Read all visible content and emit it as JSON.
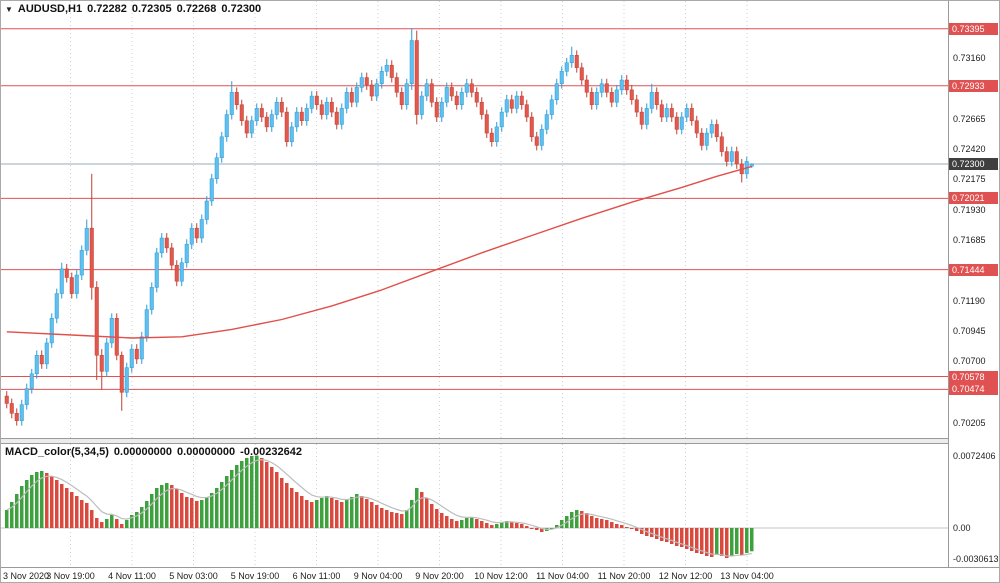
{
  "window": {
    "collapse_icon": "▼",
    "title_symbol": "AUDUSD,H1",
    "ohlc": {
      "open": "0.72282",
      "high": "0.72305",
      "low": "0.72268",
      "close": "0.72300"
    }
  },
  "colors": {
    "up_candle_fill": "#5fc0ef",
    "up_candle_border": "#2d9cd6",
    "down_candle_fill": "#e2584c",
    "down_candle_border": "#bf4136",
    "level_line": "#e05252",
    "ma_line": "#e04f4a",
    "current_line": "#93adc0",
    "tag_red_bg": "#e05252",
    "tag_current_bg": "#3f3f3f",
    "macd_up": "#3da13d",
    "macd_down": "#d9493e",
    "signal_line": "#bdbdbd",
    "grid": "#cfcfcf",
    "zero_line": "#c4c4c4"
  },
  "chart_data": {
    "type": "candlestick",
    "symbol": "AUDUSD",
    "timeframe": "H1",
    "price_axis": {
      "range": {
        "min": 0.7008,
        "max": 0.7362
      },
      "ticks": [
        {
          "v": 0.7316,
          "t": "0.73160"
        },
        {
          "v": 0.72665,
          "t": "0.72665"
        },
        {
          "v": 0.7242,
          "t": "0.72420"
        },
        {
          "v": 0.72175,
          "t": "0.72175"
        },
        {
          "v": 0.7193,
          "t": "0.71930"
        },
        {
          "v": 0.71685,
          "t": "0.71685"
        },
        {
          "v": 0.7119,
          "t": "0.71190"
        },
        {
          "v": 0.70945,
          "t": "0.70945"
        },
        {
          "v": 0.707,
          "t": "0.70700"
        },
        {
          "v": 0.70205,
          "t": "0.70205"
        }
      ]
    },
    "time_labels": [
      "3 Nov 2020",
      "3 Nov 19:00",
      "4 Nov 11:00",
      "5 Nov 03:00",
      "5 Nov 19:00",
      "6 Nov 11:00",
      "9 Nov 04:00",
      "9 Nov 20:00",
      "10 Nov 12:00",
      "11 Nov 04:00",
      "11 Nov 20:00",
      "12 Nov 12:00",
      "13 Nov 04:00"
    ],
    "horizontal_levels": [
      {
        "v": 0.73395,
        "t": "0.73395"
      },
      {
        "v": 0.72933,
        "t": "0.72933"
      },
      {
        "v": 0.72021,
        "t": "0.72021"
      },
      {
        "v": 0.71444,
        "t": "0.71444"
      },
      {
        "v": 0.70578,
        "t": "0.70578"
      },
      {
        "v": 0.70474,
        "t": "0.70474"
      }
    ],
    "current_price": {
      "v": 0.723,
      "t": "0.72300"
    },
    "ma_line_anchors": [
      [
        0,
        0.7094
      ],
      [
        15,
        0.7091
      ],
      [
        25,
        0.7089
      ],
      [
        35,
        0.709
      ],
      [
        45,
        0.7096
      ],
      [
        55,
        0.7104
      ],
      [
        65,
        0.7115
      ],
      [
        75,
        0.7128
      ],
      [
        85,
        0.7143
      ],
      [
        95,
        0.7158
      ],
      [
        105,
        0.7172
      ],
      [
        115,
        0.7186
      ],
      [
        125,
        0.7199
      ],
      [
        135,
        0.7211
      ],
      [
        142,
        0.722
      ],
      [
        149,
        0.7228
      ]
    ],
    "candles": [
      [
        0.7042,
        0.7046,
        0.7032,
        0.7036
      ],
      [
        0.7036,
        0.704,
        0.7024,
        0.7028
      ],
      [
        0.7028,
        0.7032,
        0.7018,
        0.7022
      ],
      [
        0.7022,
        0.7039,
        0.7018,
        0.7035
      ],
      [
        0.7035,
        0.7052,
        0.7031,
        0.7048
      ],
      [
        0.7048,
        0.7064,
        0.7044,
        0.706
      ],
      [
        0.706,
        0.7079,
        0.7056,
        0.7075
      ],
      [
        0.7075,
        0.7079,
        0.7064,
        0.7068
      ],
      [
        0.7068,
        0.7089,
        0.7064,
        0.7085
      ],
      [
        0.7085,
        0.7109,
        0.7081,
        0.7105
      ],
      [
        0.7105,
        0.7129,
        0.7101,
        0.7125
      ],
      [
        0.7125,
        0.715,
        0.7121,
        0.7145
      ],
      [
        0.7145,
        0.7149,
        0.7134,
        0.7138
      ],
      [
        0.7138,
        0.7142,
        0.7121,
        0.7125
      ],
      [
        0.7125,
        0.7144,
        0.7121,
        0.714
      ],
      [
        0.714,
        0.7164,
        0.7136,
        0.716
      ],
      [
        0.716,
        0.7185,
        0.7156,
        0.7178
      ],
      [
        0.7178,
        0.7222,
        0.712,
        0.713
      ],
      [
        0.713,
        0.7135,
        0.7055,
        0.7075
      ],
      [
        0.7075,
        0.708,
        0.7047,
        0.7062
      ],
      [
        0.7062,
        0.7089,
        0.7058,
        0.7085
      ],
      [
        0.7085,
        0.7109,
        0.7081,
        0.7105
      ],
      [
        0.7105,
        0.7109,
        0.7071,
        0.7075
      ],
      [
        0.7075,
        0.7078,
        0.703,
        0.7045
      ],
      [
        0.7045,
        0.7069,
        0.7041,
        0.7065
      ],
      [
        0.7065,
        0.7084,
        0.7061,
        0.708
      ],
      [
        0.708,
        0.7084,
        0.7068,
        0.7072
      ],
      [
        0.7072,
        0.7094,
        0.7068,
        0.709
      ],
      [
        0.709,
        0.7116,
        0.7086,
        0.7112
      ],
      [
        0.7112,
        0.7134,
        0.7108,
        0.713
      ],
      [
        0.713,
        0.7162,
        0.7126,
        0.7158
      ],
      [
        0.7158,
        0.7174,
        0.7154,
        0.717
      ],
      [
        0.717,
        0.7174,
        0.7158,
        0.7162
      ],
      [
        0.7162,
        0.7166,
        0.7144,
        0.7148
      ],
      [
        0.7148,
        0.7152,
        0.7131,
        0.7135
      ],
      [
        0.7135,
        0.7154,
        0.7131,
        0.715
      ],
      [
        0.715,
        0.7169,
        0.7146,
        0.7165
      ],
      [
        0.7165,
        0.7182,
        0.7161,
        0.7178
      ],
      [
        0.7178,
        0.7182,
        0.7166,
        0.717
      ],
      [
        0.717,
        0.7189,
        0.7166,
        0.7185
      ],
      [
        0.7185,
        0.7204,
        0.7181,
        0.72
      ],
      [
        0.72,
        0.7222,
        0.7196,
        0.7218
      ],
      [
        0.7218,
        0.7239,
        0.7214,
        0.7235
      ],
      [
        0.7235,
        0.7256,
        0.7231,
        0.7252
      ],
      [
        0.7252,
        0.7274,
        0.7248,
        0.727
      ],
      [
        0.727,
        0.7297,
        0.7266,
        0.7288
      ],
      [
        0.7288,
        0.7292,
        0.7274,
        0.7278
      ],
      [
        0.7278,
        0.7282,
        0.7261,
        0.7265
      ],
      [
        0.7265,
        0.7269,
        0.7251,
        0.7255
      ],
      [
        0.7255,
        0.7269,
        0.7251,
        0.7265
      ],
      [
        0.7265,
        0.7279,
        0.7261,
        0.7275
      ],
      [
        0.7275,
        0.7279,
        0.7264,
        0.7268
      ],
      [
        0.7268,
        0.7272,
        0.7256,
        0.726
      ],
      [
        0.726,
        0.7274,
        0.7256,
        0.727
      ],
      [
        0.727,
        0.7284,
        0.7266,
        0.728
      ],
      [
        0.728,
        0.7284,
        0.7268,
        0.7272
      ],
      [
        0.7272,
        0.7276,
        0.7244,
        0.7248
      ],
      [
        0.7248,
        0.7264,
        0.7244,
        0.726
      ],
      [
        0.726,
        0.7276,
        0.7256,
        0.7272
      ],
      [
        0.7272,
        0.7276,
        0.7261,
        0.7265
      ],
      [
        0.7265,
        0.7279,
        0.7261,
        0.7275
      ],
      [
        0.7275,
        0.7289,
        0.7271,
        0.7285
      ],
      [
        0.7285,
        0.7289,
        0.7274,
        0.7278
      ],
      [
        0.7278,
        0.7282,
        0.7266,
        0.727
      ],
      [
        0.727,
        0.7284,
        0.7266,
        0.728
      ],
      [
        0.728,
        0.7284,
        0.7268,
        0.7272
      ],
      [
        0.7272,
        0.7276,
        0.7258,
        0.7262
      ],
      [
        0.7262,
        0.7279,
        0.7258,
        0.7275
      ],
      [
        0.7275,
        0.7292,
        0.7271,
        0.7288
      ],
      [
        0.7288,
        0.7292,
        0.7276,
        0.728
      ],
      [
        0.728,
        0.7296,
        0.7276,
        0.7292
      ],
      [
        0.7292,
        0.7304,
        0.7288,
        0.73
      ],
      [
        0.73,
        0.7304,
        0.729,
        0.7294
      ],
      [
        0.7294,
        0.7298,
        0.7281,
        0.7285
      ],
      [
        0.7285,
        0.7299,
        0.7281,
        0.7295
      ],
      [
        0.7295,
        0.7309,
        0.7291,
        0.7305
      ],
      [
        0.7305,
        0.7315,
        0.7301,
        0.731
      ],
      [
        0.731,
        0.7314,
        0.7296,
        0.73
      ],
      [
        0.73,
        0.7304,
        0.7284,
        0.7288
      ],
      [
        0.7288,
        0.7292,
        0.7274,
        0.7278
      ],
      [
        0.7278,
        0.7299,
        0.7274,
        0.7295
      ],
      [
        0.7295,
        0.734,
        0.729,
        0.733
      ],
      [
        0.733,
        0.7338,
        0.7262,
        0.727
      ],
      [
        0.727,
        0.7289,
        0.7266,
        0.7285
      ],
      [
        0.7285,
        0.7299,
        0.7281,
        0.7295
      ],
      [
        0.7295,
        0.7299,
        0.7276,
        0.728
      ],
      [
        0.728,
        0.7284,
        0.7264,
        0.7268
      ],
      [
        0.7268,
        0.7284,
        0.7264,
        0.728
      ],
      [
        0.728,
        0.7296,
        0.7276,
        0.7292
      ],
      [
        0.7292,
        0.7296,
        0.7281,
        0.7285
      ],
      [
        0.7285,
        0.7289,
        0.7274,
        0.7278
      ],
      [
        0.7278,
        0.7292,
        0.7274,
        0.7288
      ],
      [
        0.7288,
        0.7299,
        0.7284,
        0.7295
      ],
      [
        0.7295,
        0.7299,
        0.7284,
        0.7288
      ],
      [
        0.7288,
        0.7292,
        0.7276,
        0.728
      ],
      [
        0.728,
        0.7284,
        0.7266,
        0.727
      ],
      [
        0.727,
        0.7274,
        0.7251,
        0.7255
      ],
      [
        0.7255,
        0.7259,
        0.7244,
        0.7248
      ],
      [
        0.7248,
        0.7264,
        0.7244,
        0.726
      ],
      [
        0.726,
        0.7276,
        0.7256,
        0.7272
      ],
      [
        0.7272,
        0.7286,
        0.7268,
        0.7282
      ],
      [
        0.7282,
        0.7286,
        0.7271,
        0.7275
      ],
      [
        0.7275,
        0.7289,
        0.7271,
        0.7285
      ],
      [
        0.7285,
        0.7289,
        0.7274,
        0.7278
      ],
      [
        0.7278,
        0.7282,
        0.7264,
        0.7268
      ],
      [
        0.7268,
        0.7272,
        0.7248,
        0.7252
      ],
      [
        0.7252,
        0.7256,
        0.7241,
        0.7245
      ],
      [
        0.7245,
        0.7262,
        0.7241,
        0.7258
      ],
      [
        0.7258,
        0.7274,
        0.7254,
        0.727
      ],
      [
        0.727,
        0.7286,
        0.7266,
        0.7282
      ],
      [
        0.7282,
        0.7299,
        0.7278,
        0.7295
      ],
      [
        0.7295,
        0.7309,
        0.7291,
        0.7305
      ],
      [
        0.7305,
        0.7316,
        0.7301,
        0.7312
      ],
      [
        0.7312,
        0.7325,
        0.7308,
        0.7318
      ],
      [
        0.7318,
        0.7322,
        0.7304,
        0.7308
      ],
      [
        0.7308,
        0.7312,
        0.7294,
        0.7298
      ],
      [
        0.7298,
        0.7302,
        0.7284,
        0.7288
      ],
      [
        0.7288,
        0.7292,
        0.7274,
        0.7278
      ],
      [
        0.7278,
        0.7292,
        0.7274,
        0.7288
      ],
      [
        0.7288,
        0.7299,
        0.7284,
        0.7295
      ],
      [
        0.7295,
        0.7299,
        0.7284,
        0.7288
      ],
      [
        0.7288,
        0.7292,
        0.7276,
        0.728
      ],
      [
        0.728,
        0.7294,
        0.7276,
        0.729
      ],
      [
        0.729,
        0.7302,
        0.7286,
        0.7298
      ],
      [
        0.7298,
        0.7302,
        0.7286,
        0.729
      ],
      [
        0.729,
        0.7294,
        0.7278,
        0.7282
      ],
      [
        0.7282,
        0.7286,
        0.7268,
        0.7272
      ],
      [
        0.7272,
        0.7276,
        0.7258,
        0.7262
      ],
      [
        0.7262,
        0.7279,
        0.7258,
        0.7275
      ],
      [
        0.7275,
        0.7295,
        0.7271,
        0.7288
      ],
      [
        0.7288,
        0.7292,
        0.7274,
        0.7278
      ],
      [
        0.7278,
        0.7282,
        0.7264,
        0.7268
      ],
      [
        0.7268,
        0.7279,
        0.7264,
        0.7275
      ],
      [
        0.7275,
        0.7279,
        0.7264,
        0.7268
      ],
      [
        0.7268,
        0.7272,
        0.7254,
        0.7258
      ],
      [
        0.7258,
        0.7272,
        0.7254,
        0.7268
      ],
      [
        0.7268,
        0.7279,
        0.7264,
        0.7275
      ],
      [
        0.7275,
        0.7279,
        0.7261,
        0.7265
      ],
      [
        0.7265,
        0.7269,
        0.7251,
        0.7255
      ],
      [
        0.7255,
        0.7259,
        0.7241,
        0.7245
      ],
      [
        0.7245,
        0.7259,
        0.7241,
        0.7255
      ],
      [
        0.7255,
        0.7266,
        0.7251,
        0.7262
      ],
      [
        0.7262,
        0.7266,
        0.7248,
        0.7252
      ],
      [
        0.7252,
        0.7256,
        0.7236,
        0.724
      ],
      [
        0.724,
        0.7244,
        0.7228,
        0.7232
      ],
      [
        0.7232,
        0.7244,
        0.7228,
        0.724
      ],
      [
        0.724,
        0.7244,
        0.7226,
        0.723
      ],
      [
        0.723,
        0.7234,
        0.7215,
        0.7222
      ],
      [
        0.7222,
        0.7236,
        0.7218,
        0.7232
      ],
      [
        0.72282,
        0.72305,
        0.72268,
        0.723
      ]
    ],
    "macd": {
      "header": {
        "name": "MACD_color(5,34,5)",
        "values": [
          "0.00000000",
          "0.00000000",
          "-0.00232642"
        ]
      },
      "params": {
        "fast": 5,
        "slow": 34,
        "signal": 5
      },
      "axis_labels": [
        {
          "v": 0.0072406,
          "t": "0.0072406"
        },
        {
          "v": 0.0,
          "t": "0.00"
        },
        {
          "v": -0.0030613,
          "t": "-0.0030613"
        }
      ],
      "histogram": [
        0.0018,
        0.0026,
        0.0034,
        0.0042,
        0.0048,
        0.0053,
        0.0056,
        0.0057,
        0.0055,
        0.0052,
        0.0048,
        0.0044,
        0.004,
        0.0036,
        0.0032,
        0.0028,
        0.0025,
        0.0018,
        0.001,
        0.0006,
        0.0009,
        0.0013,
        0.0009,
        0.0004,
        0.0008,
        0.0013,
        0.0016,
        0.0021,
        0.0027,
        0.0034,
        0.004,
        0.0043,
        0.0045,
        0.0043,
        0.0039,
        0.0035,
        0.0031,
        0.003,
        0.0027,
        0.0028,
        0.0031,
        0.0035,
        0.004,
        0.0046,
        0.0052,
        0.0058,
        0.0063,
        0.0067,
        0.007,
        0.0072,
        0.00724,
        0.007,
        0.0066,
        0.0061,
        0.0056,
        0.005,
        0.0045,
        0.004,
        0.0036,
        0.0032,
        0.0028,
        0.0026,
        0.0028,
        0.003,
        0.0032,
        0.003,
        0.0028,
        0.0026,
        0.0028,
        0.0031,
        0.0034,
        0.0032,
        0.0029,
        0.0026,
        0.0023,
        0.002,
        0.0018,
        0.0016,
        0.0015,
        0.0014,
        0.0018,
        0.0028,
        0.004,
        0.0036,
        0.003,
        0.0024,
        0.0019,
        0.0015,
        0.0012,
        0.0009,
        0.0007,
        0.0008,
        0.001,
        0.0011,
        0.0009,
        0.0007,
        0.0005,
        0.0003,
        0.0004,
        0.0006,
        0.0007,
        0.0006,
        0.0005,
        0.0004,
        0.0002,
        0.0,
        -0.0002,
        -0.0004,
        -0.0003,
        -0.0001,
        0.0003,
        0.0008,
        0.0012,
        0.0016,
        0.0018,
        0.0017,
        0.0015,
        0.0012,
        0.001,
        0.0009,
        0.0008,
        0.0006,
        0.0004,
        0.0003,
        0.0001,
        -0.0001,
        -0.0003,
        -0.0006,
        -0.0008,
        -0.0009,
        -0.0011,
        -0.0013,
        -0.0014,
        -0.0016,
        -0.0018,
        -0.0019,
        -0.0021,
        -0.0023,
        -0.0025,
        -0.0026,
        -0.0028,
        -0.0029,
        -0.0027,
        -0.0028,
        -0.003,
        -0.0028,
        -0.0026,
        -0.0027,
        -0.0025,
        -0.00233
      ]
    }
  }
}
